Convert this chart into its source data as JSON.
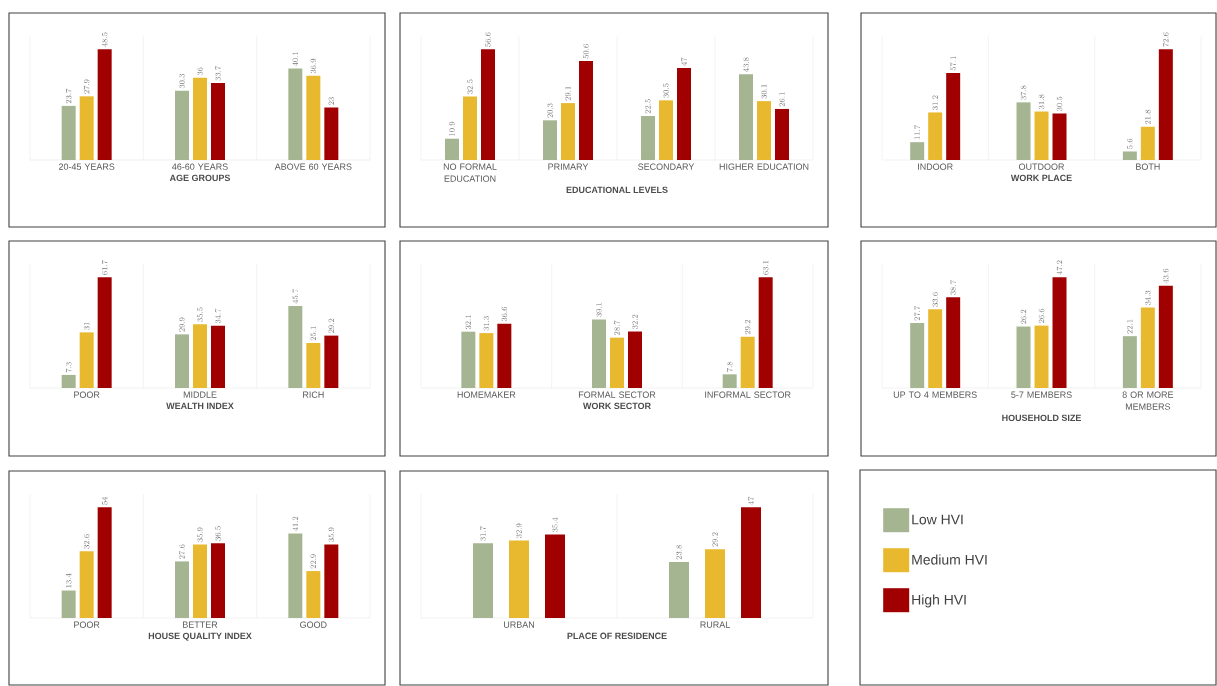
{
  "chart_data": [
    {
      "type": "bar",
      "xlabel": "AGE GROUPS",
      "categories": [
        "20-45 YEARS",
        "46-60 YEARS",
        "ABOVE 60 YEARS"
      ],
      "data_labels": true,
      "grid": "x",
      "series": [
        {
          "color": "#a5b592",
          "values": [
            23.7,
            30.3,
            40.1
          ]
        },
        {
          "color": "#e8b92e",
          "values": [
            27.9,
            36,
            36.9
          ]
        },
        {
          "color": "#a00000",
          "values": [
            48.5,
            33.7,
            23
          ]
        }
      ]
    },
    {
      "type": "bar",
      "xlabel": "EDUCATIONAL LEVELS",
      "categories": [
        "NO FORMAL EDUCATION",
        "PRIMARY",
        "SECONDARY",
        "HIGHER EDUCATION"
      ],
      "data_labels": true,
      "grid": "x",
      "series": [
        {
          "color": "#a5b592",
          "values": [
            10.9,
            20.3,
            22.5,
            43.8
          ]
        },
        {
          "color": "#e8b92e",
          "values": [
            32.5,
            29.1,
            30.5,
            30.1
          ]
        },
        {
          "color": "#a00000",
          "values": [
            56.6,
            50.6,
            47,
            26.1
          ]
        }
      ]
    },
    {
      "type": "bar",
      "xlabel": "WORK PLACE",
      "categories": [
        "INDOOR",
        "OUTDOOR",
        "BOTH"
      ],
      "data_labels": true,
      "grid": "x",
      "series": [
        {
          "color": "#a5b592",
          "values": [
            11.7,
            37.8,
            5.6
          ]
        },
        {
          "color": "#e8b92e",
          "values": [
            31.2,
            31.8,
            21.8
          ]
        },
        {
          "color": "#a00000",
          "values": [
            57.1,
            30.5,
            72.6
          ]
        }
      ]
    },
    {
      "type": "bar",
      "xlabel": "WEALTH INDEX",
      "categories": [
        "POOR",
        "MIDDLE",
        "RICH"
      ],
      "data_labels": true,
      "grid": "x",
      "series": [
        {
          "color": "#a5b592",
          "values": [
            7.3,
            29.9,
            45.7
          ]
        },
        {
          "color": "#e8b92e",
          "values": [
            31,
            35.5,
            25.1
          ]
        },
        {
          "color": "#a00000",
          "values": [
            61.7,
            34.7,
            29.2
          ]
        }
      ]
    },
    {
      "type": "bar",
      "xlabel": "WORK SECTOR",
      "categories": [
        "HOMEMAKER",
        "FORMAL SECTOR",
        "INFORMAL SECTOR"
      ],
      "data_labels": true,
      "grid": "x",
      "series": [
        {
          "color": "#a5b592",
          "values": [
            32.1,
            39.1,
            7.8
          ]
        },
        {
          "color": "#e8b92e",
          "values": [
            31.3,
            28.7,
            29.2
          ]
        },
        {
          "color": "#a00000",
          "values": [
            36.6,
            32.2,
            63.1
          ]
        }
      ]
    },
    {
      "type": "bar",
      "xlabel": "HOUSEHOLD SIZE",
      "categories": [
        "UP TO 4 MEMBERS",
        "5-7 MEMBERS",
        "8 OR MORE MEMBERS"
      ],
      "data_labels": true,
      "grid": "x",
      "series": [
        {
          "color": "#a5b592",
          "values": [
            27.7,
            26.2,
            22.1
          ]
        },
        {
          "color": "#e8b92e",
          "values": [
            33.6,
            26.6,
            34.3
          ]
        },
        {
          "color": "#a00000",
          "values": [
            38.7,
            47.2,
            43.6
          ]
        }
      ]
    },
    {
      "type": "bar",
      "xlabel": "HOUSE QUALITY INDEX",
      "categories": [
        "POOR",
        "BETTER",
        "GOOD"
      ],
      "data_labels": true,
      "grid": "x",
      "series": [
        {
          "color": "#a5b592",
          "values": [
            13.4,
            27.6,
            41.2
          ]
        },
        {
          "color": "#e8b92e",
          "values": [
            32.6,
            35.9,
            22.9
          ]
        },
        {
          "color": "#a00000",
          "values": [
            54,
            36.5,
            35.9
          ]
        }
      ]
    },
    {
      "type": "bar",
      "xlabel": "PLACE OF RESIDENCE",
      "categories": [
        "URBAN",
        "RURAL"
      ],
      "data_labels": true,
      "grid": "x",
      "legend": "right",
      "series": [
        {
          "name": "Low HVI",
          "color": "#a5b592",
          "values": [
            31.7,
            23.8
          ]
        },
        {
          "name": "Medium HVI",
          "color": "#e8b92e",
          "values": [
            32.9,
            29.2
          ]
        },
        {
          "name": "High HVI",
          "color": "#a00000",
          "values": [
            35.4,
            47
          ]
        }
      ]
    }
  ]
}
